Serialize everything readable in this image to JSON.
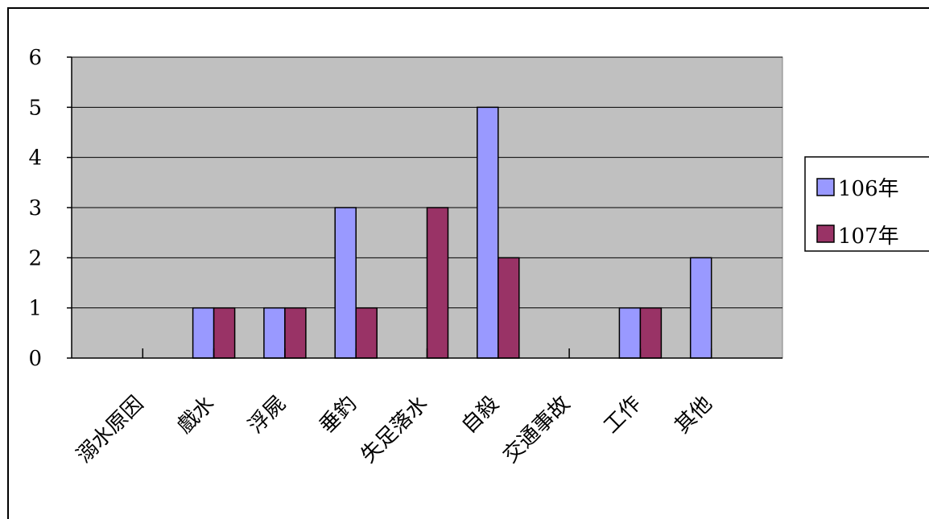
{
  "chart_data": {
    "type": "bar",
    "categories": [
      "溺水原因",
      "戲水",
      "浮屍",
      "垂釣",
      "失足落水",
      "自殺",
      "交通事故",
      "工作",
      "其他"
    ],
    "series": [
      {
        "name": "106年",
        "color": "#9999ff",
        "values": [
          0,
          1,
          1,
          3,
          0,
          5,
          0,
          1,
          2
        ]
      },
      {
        "name": "107年",
        "color": "#993366",
        "values": [
          0,
          1,
          1,
          1,
          3,
          2,
          0,
          1,
          0
        ]
      }
    ],
    "ylim": [
      0,
      6
    ],
    "yticks": [
      "0",
      "1",
      "2",
      "3",
      "4",
      "5",
      "6"
    ],
    "grid": true,
    "plot_background": "#c0c0c0",
    "legend_position": "right"
  }
}
